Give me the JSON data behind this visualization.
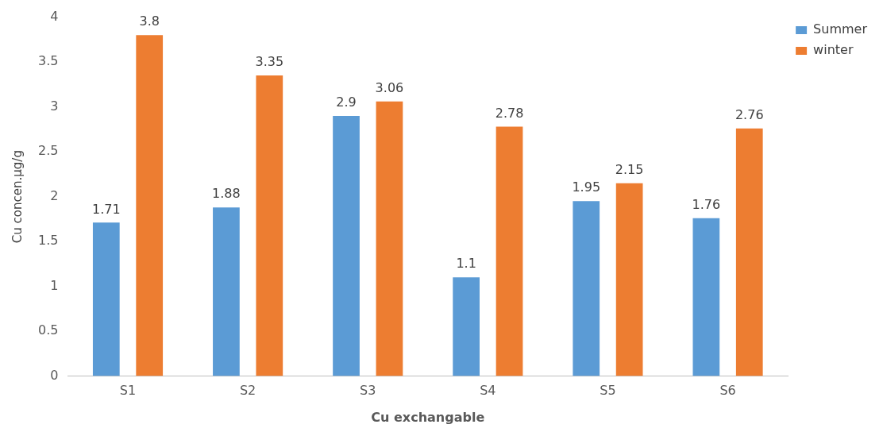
{
  "chart_data": {
    "type": "bar",
    "xlabel": "Cu exchangable",
    "ylabel": "Cu concen.µg/g",
    "categories": [
      "S1",
      "S2",
      "S3",
      "S4",
      "S5",
      "S6"
    ],
    "series": [
      {
        "name": "Summer",
        "color": "#5b9bd5",
        "values": [
          1.71,
          1.88,
          2.9,
          1.1,
          1.95,
          1.76
        ]
      },
      {
        "name": "winter",
        "color": "#ed7d31",
        "values": [
          3.8,
          3.35,
          3.06,
          2.78,
          2.15,
          2.76
        ]
      }
    ],
    "ylim": [
      0,
      4
    ],
    "yticks": [
      0,
      0.5,
      1,
      1.5,
      2,
      2.5,
      3,
      3.5,
      4
    ],
    "grid": false,
    "legend": "top right",
    "data_labels": true
  }
}
